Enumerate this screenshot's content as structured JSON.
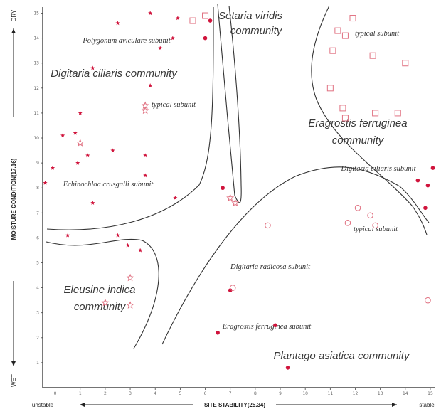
{
  "chart_data": {
    "type": "scatter",
    "x_axis": {
      "label": "SITE STABILITY(25.34)",
      "left_end": "unstable",
      "right_end": "stable",
      "ticks": [
        "0",
        "1",
        "2",
        "3",
        "4",
        "5",
        "6",
        "7",
        "8",
        "9",
        "10",
        "11",
        "12",
        "13",
        "14",
        "15"
      ]
    },
    "y_axis": {
      "label": "MOISTURE CONDITION(17.16)",
      "bottom_end": "WET",
      "top_end": "DRY",
      "ticks": [
        "1",
        "2",
        "3",
        "4",
        "5",
        "6",
        "7",
        "8",
        "9",
        "10",
        "11",
        "12",
        "13",
        "14",
        "15"
      ]
    },
    "xlim": [
      -0.5,
      15.2
    ],
    "ylim": [
      0,
      15.3
    ],
    "communities": [
      "Setaria viridis community",
      "Digitaria ciliaris community",
      "Eragrostis ferruginea community",
      "Eleusine indica community",
      "Plantago asiatica community"
    ],
    "subunits": [
      "Polygonum aviculare subunit",
      "typical subunit",
      "Echinochloa crusgalli subunit",
      "typical subunit",
      "Digitaria ciliaris subunit",
      "typical subunit",
      "Digitaria radicosa subunit",
      "Eragrostis ferruginea subunit"
    ],
    "series": [
      {
        "marker": "filled-dot",
        "points": [
          [
            6.0,
            14.0
          ],
          [
            6.2,
            14.7
          ],
          [
            6.7,
            8.0
          ],
          [
            7.0,
            3.9
          ],
          [
            6.5,
            2.2
          ],
          [
            8.8,
            2.5
          ],
          [
            9.3,
            0.8
          ],
          [
            14.5,
            8.3
          ],
          [
            14.9,
            8.1
          ],
          [
            14.8,
            7.2
          ],
          [
            15.1,
            8.8
          ]
        ]
      },
      {
        "marker": "small-star",
        "points": [
          [
            3.8,
            15.0
          ],
          [
            4.2,
            13.6
          ],
          [
            4.7,
            14.0
          ],
          [
            2.5,
            14.6
          ],
          [
            4.9,
            14.8
          ],
          [
            1.5,
            12.8
          ],
          [
            3.8,
            12.1
          ],
          [
            1.0,
            11.0
          ],
          [
            0.3,
            10.1
          ],
          [
            2.3,
            9.5
          ],
          [
            0.9,
            9.0
          ],
          [
            1.3,
            9.3
          ],
          [
            3.6,
            9.3
          ],
          [
            -0.1,
            8.8
          ],
          [
            3.6,
            8.5
          ],
          [
            4.8,
            7.6
          ],
          [
            1.5,
            7.4
          ],
          [
            2.5,
            6.1
          ],
          [
            0.5,
            6.1
          ],
          [
            2.9,
            5.7
          ],
          [
            3.4,
            5.5
          ],
          [
            -0.4,
            8.2
          ],
          [
            0.8,
            10.2
          ]
        ]
      },
      {
        "marker": "open-star",
        "points": [
          [
            3.6,
            11.1
          ],
          [
            3.6,
            11.3
          ],
          [
            1.0,
            9.8
          ],
          [
            7.0,
            7.6
          ],
          [
            7.2,
            7.4
          ],
          [
            2.0,
            3.4
          ],
          [
            3.0,
            3.3
          ],
          [
            3.0,
            4.4
          ]
        ]
      },
      {
        "marker": "open-square",
        "points": [
          [
            5.5,
            14.7
          ],
          [
            6.0,
            14.9
          ],
          [
            11.3,
            14.3
          ],
          [
            11.6,
            14.1
          ],
          [
            11.1,
            13.5
          ],
          [
            12.7,
            13.3
          ],
          [
            14.0,
            13.0
          ],
          [
            11.0,
            12.0
          ],
          [
            11.5,
            11.2
          ],
          [
            11.6,
            10.8
          ],
          [
            12.8,
            11.0
          ],
          [
            13.7,
            11.0
          ],
          [
            11.9,
            14.8
          ]
        ]
      },
      {
        "marker": "open-circle",
        "points": [
          [
            12.1,
            7.2
          ],
          [
            12.6,
            6.9
          ],
          [
            11.7,
            6.6
          ],
          [
            12.8,
            6.5
          ],
          [
            7.1,
            4.0
          ],
          [
            8.5,
            6.5
          ],
          [
            14.9,
            3.5
          ]
        ]
      }
    ]
  }
}
